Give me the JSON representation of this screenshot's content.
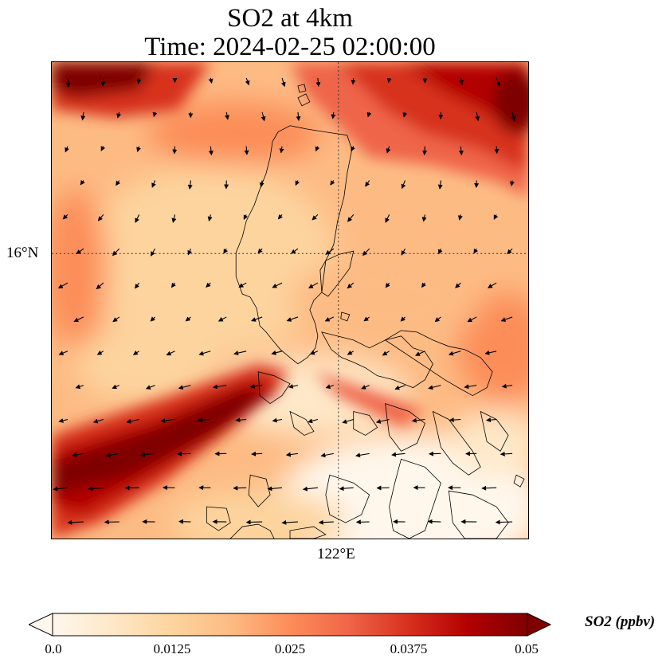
{
  "title": {
    "line1": "SO2 at 4km",
    "line2": "Time: 2024-02-25 02:00:00"
  },
  "map": {
    "lat_tick_label": "16°N",
    "lon_tick_label": "122°E",
    "colormap": [
      "#fff7ec",
      "#fee8c8",
      "#fdd49e",
      "#fdbb84",
      "#fc8d59",
      "#ef6548",
      "#d7301f",
      "#b30000",
      "#7f0000"
    ],
    "coastline_color": "#000000",
    "arrow_color": "#000000"
  },
  "colorbar": {
    "label": "SO2 (ppbv)",
    "ticks": [
      "0.0",
      "0.0125",
      "0.025",
      "0.0375",
      "0.05"
    ],
    "min": 0.0,
    "max": 0.05,
    "extend": "both"
  }
}
